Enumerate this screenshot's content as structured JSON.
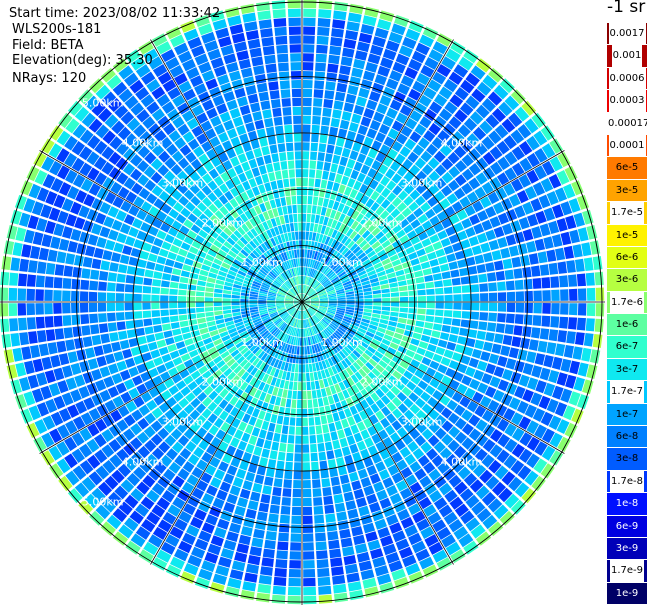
{
  "info": {
    "start_time": "Start time: 2023/08/02 11:33:42",
    "site": "WLS200s-181",
    "field": "Field: BETA",
    "elevation": "Elevation(deg): 35.30",
    "nrays": "NRays: 120"
  },
  "colorbar": {
    "unit_title": "-1 sr",
    "levels": [
      {
        "label": "0.0017",
        "color": "#8b0000",
        "text_color": "#ffffff",
        "label_bg": "#ffffff",
        "label_fg": "#000000"
      },
      {
        "label": "0.001",
        "color": "#b00000",
        "text_color": "#ffffff",
        "label_bg": "#ffffff",
        "label_fg": "#000000"
      },
      {
        "label": "0.0006",
        "color": "#d40000",
        "text_color": "#ffffff",
        "label_bg": "#ffffff",
        "label_fg": "#000000"
      },
      {
        "label": "0.0003",
        "color": "#ee0000",
        "text_color": "#ffffff",
        "label_bg": "#ffffff",
        "label_fg": "#000000"
      },
      {
        "label": "0.00017",
        "color": "#ff2000",
        "text_color": "#000000",
        "label_bg": "#ffffff",
        "label_fg": "#000000"
      },
      {
        "label": "0.0001",
        "color": "#ff4b00",
        "text_color": "#000000",
        "label_bg": "#ffffff",
        "label_fg": "#000000"
      },
      {
        "label": "6e-5",
        "color": "#ff7a00",
        "text_color": "#000000",
        "label_bg": "none",
        "label_fg": "#000000"
      },
      {
        "label": "3e-5",
        "color": "#ffa300",
        "text_color": "#000000",
        "label_bg": "none",
        "label_fg": "#000000"
      },
      {
        "label": "1.7e-5",
        "color": "#ffcf00",
        "text_color": "#000000",
        "label_bg": "#ffffff",
        "label_fg": "#000000"
      },
      {
        "label": "1e-5",
        "color": "#fff200",
        "text_color": "#000000",
        "label_bg": "none",
        "label_fg": "#000000"
      },
      {
        "label": "6e-6",
        "color": "#e2ff14",
        "text_color": "#000000",
        "label_bg": "none",
        "label_fg": "#000000"
      },
      {
        "label": "3e-6",
        "color": "#b6ff41",
        "text_color": "#000000",
        "label_bg": "none",
        "label_fg": "#000000"
      },
      {
        "label": "1.7e-6",
        "color": "#89ff6e",
        "text_color": "#000000",
        "label_bg": "#ffffff",
        "label_fg": "#000000"
      },
      {
        "label": "1e-6",
        "color": "#5dffa1",
        "text_color": "#000000",
        "label_bg": "none",
        "label_fg": "#000000"
      },
      {
        "label": "6e-7",
        "color": "#30ffce",
        "text_color": "#000000",
        "label_bg": "none",
        "label_fg": "#000000"
      },
      {
        "label": "3e-7",
        "color": "#0fe9f0",
        "text_color": "#000000",
        "label_bg": "none",
        "label_fg": "#000000"
      },
      {
        "label": "1.7e-7",
        "color": "#00c8ff",
        "text_color": "#000000",
        "label_bg": "#ffffff",
        "label_fg": "#000000"
      },
      {
        "label": "1e-7",
        "color": "#00a4ff",
        "text_color": "#000000",
        "label_bg": "none",
        "label_fg": "#000000"
      },
      {
        "label": "6e-8",
        "color": "#0080ff",
        "text_color": "#000000",
        "label_bg": "none",
        "label_fg": "#000000"
      },
      {
        "label": "3e-8",
        "color": "#005cff",
        "text_color": "#000000",
        "label_bg": "none",
        "label_fg": "#000000"
      },
      {
        "label": "1.7e-8",
        "color": "#0038ff",
        "text_color": "#000000",
        "label_bg": "#ffffff",
        "label_fg": "#000000"
      },
      {
        "label": "1e-8",
        "color": "#0010ff",
        "text_color": "#ffffff",
        "label_bg": "none",
        "label_fg": "#ffffff"
      },
      {
        "label": "6e-9",
        "color": "#0000e0",
        "text_color": "#ffffff",
        "label_bg": "none",
        "label_fg": "#ffffff"
      },
      {
        "label": "3e-9",
        "color": "#0000b8",
        "text_color": "#ffffff",
        "label_bg": "none",
        "label_fg": "#ffffff"
      },
      {
        "label": "1.7e-9",
        "color": "#00008f",
        "text_color": "#ffffff",
        "label_bg": "#ffffff",
        "label_fg": "#000000"
      },
      {
        "label": "1e-9",
        "color": "#000066",
        "text_color": "#ffffff",
        "label_bg": "none",
        "label_fg": "#ffffff"
      }
    ]
  },
  "chart_data": {
    "type": "heatmap",
    "projection": "polar-ppi",
    "n_rays": 120,
    "max_range_km": 5.0,
    "range_rings_km": [
      1.0,
      2.0,
      3.0,
      4.0,
      5.0
    ],
    "ring_labels": [
      "1.00km",
      "2.00km",
      "3.00km",
      "4.00km",
      "5.00km"
    ],
    "radial_lines_deg": [
      0,
      30,
      60,
      90,
      120,
      150,
      180,
      210,
      240,
      270,
      300,
      330
    ],
    "range_profile": [
      {
        "range_km": 0.2,
        "value": "6e-7"
      },
      {
        "range_km": 0.8,
        "value": "1e-7"
      },
      {
        "range_km": 1.6,
        "value": "6e-7"
      },
      {
        "range_km": 2.5,
        "value": "1.7e-7"
      },
      {
        "range_km": 3.5,
        "value": "6e-8"
      },
      {
        "range_km": 4.6,
        "value": "3e-8"
      },
      {
        "range_km": 5.0,
        "value": "3e-6"
      }
    ]
  }
}
